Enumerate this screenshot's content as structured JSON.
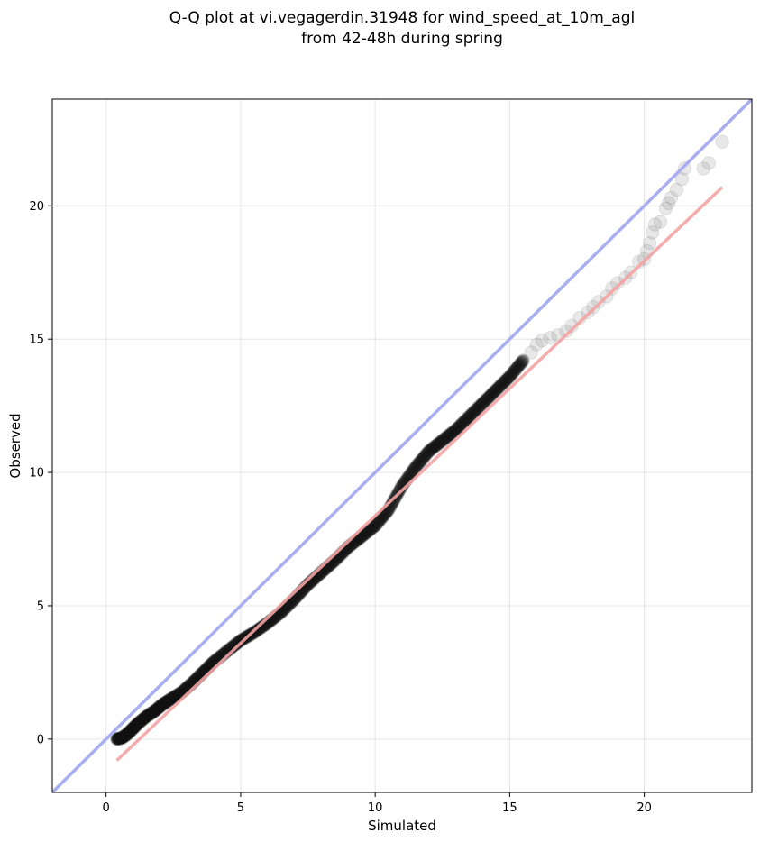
{
  "chart_data": {
    "type": "scatter",
    "title_lines": [
      "Q-Q plot at vi.vegagerdin.31948 for wind_speed_at_10m_agl",
      "from 42-48h during spring"
    ],
    "xlabel": "Simulated",
    "ylabel": "Observed",
    "xlim": [
      -2,
      24
    ],
    "ylim": [
      -2,
      24
    ],
    "x_ticks": [
      0,
      5,
      10,
      15,
      20
    ],
    "y_ticks": [
      0,
      5,
      10,
      15,
      20
    ],
    "grid": true,
    "legend": "none",
    "identity_line": {
      "x": [
        -2,
        24
      ],
      "y": [
        -2,
        24
      ],
      "color": "#a9aef0"
    },
    "fit_line": {
      "x": [
        0.4,
        22.9
      ],
      "y": [
        -0.8,
        20.7
      ],
      "color": "#f3a3a3"
    },
    "point_color": "#7f7f7f",
    "dense_series": {
      "x": [
        0.4,
        0.6,
        0.8,
        1.0,
        1.2,
        1.5,
        1.8,
        2.1,
        2.4,
        2.8,
        3.2,
        3.6,
        4.0,
        4.5,
        5.0,
        5.5,
        6.0,
        6.5,
        7.0,
        7.5,
        8.0,
        8.5,
        9.0,
        9.5,
        10.0,
        10.5,
        11.0,
        11.5,
        12.0,
        12.5,
        13.0,
        13.5,
        14.0,
        14.5,
        15.0,
        15.5
      ],
      "y": [
        0.0,
        0.05,
        0.2,
        0.4,
        0.6,
        0.85,
        1.05,
        1.3,
        1.5,
        1.75,
        2.1,
        2.5,
        2.9,
        3.3,
        3.7,
        4.0,
        4.35,
        4.75,
        5.25,
        5.8,
        6.25,
        6.7,
        7.2,
        7.6,
        8.0,
        8.6,
        9.5,
        10.2,
        10.8,
        11.2,
        11.6,
        12.1,
        12.6,
        13.1,
        13.6,
        14.2
      ]
    },
    "tail_points": {
      "x": [
        15.8,
        16.0,
        16.2,
        16.5,
        16.8,
        17.1,
        17.3,
        17.6,
        17.9,
        18.1,
        18.3,
        18.6,
        18.8,
        19.0,
        19.3,
        19.5,
        19.8,
        20.0,
        20.1,
        20.2,
        20.3,
        20.4,
        20.6,
        20.8,
        20.9,
        21.0,
        21.2,
        21.4,
        21.5,
        22.2,
        22.4,
        22.9
      ],
      "y": [
        14.5,
        14.8,
        14.95,
        15.05,
        15.15,
        15.3,
        15.5,
        15.8,
        16.0,
        16.2,
        16.4,
        16.6,
        16.9,
        17.1,
        17.3,
        17.5,
        17.9,
        18.0,
        18.3,
        18.6,
        19.0,
        19.3,
        19.4,
        19.9,
        20.1,
        20.3,
        20.6,
        21.0,
        21.4,
        21.4,
        21.6,
        22.4
      ]
    }
  }
}
